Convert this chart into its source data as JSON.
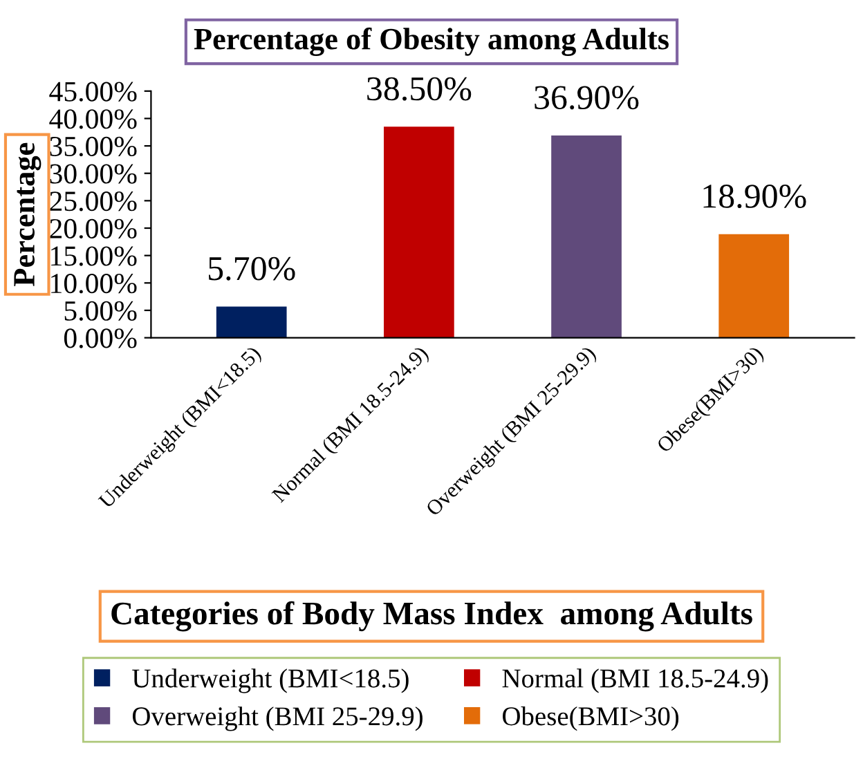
{
  "chart_data": {
    "type": "bar",
    "title": "Percentage of Obesity among Adults",
    "xlabel": "Categories of Body Mass Index  among Adults",
    "ylabel": "Percentage",
    "categories": [
      "Underweight (BMI<18.5)",
      "Normal (BMI 18.5-24.9)",
      "Overweight (BMI 25-29.9)",
      "Obese(BMI>30)"
    ],
    "series": [
      {
        "name": "Underweight (BMI<18.5)",
        "color": "#002060",
        "values": [
          5.7,
          null,
          null,
          null
        ],
        "value_labels": [
          "5.70%",
          null,
          null,
          null
        ]
      },
      {
        "name": "Normal (BMI 18.5-24.9)",
        "color": "#c00000",
        "values": [
          null,
          38.5,
          null,
          null
        ],
        "value_labels": [
          null,
          "38.50%",
          null,
          null
        ]
      },
      {
        "name": "Overweight (BMI 25-29.9)",
        "color": "#604a7b",
        "values": [
          null,
          null,
          36.9,
          null
        ],
        "value_labels": [
          null,
          null,
          "36.90%",
          null
        ]
      },
      {
        "name": "Obese(BMI>30)",
        "color": "#e36c09",
        "values": [
          null,
          null,
          null,
          18.9
        ],
        "value_labels": [
          null,
          null,
          null,
          "18.90%"
        ]
      }
    ],
    "ylim": [
      0,
      45
    ],
    "yticks": [
      {
        "value": 0,
        "label": "0.00%"
      },
      {
        "value": 5,
        "label": "5.00%"
      },
      {
        "value": 10,
        "label": "10.00%"
      },
      {
        "value": 15,
        "label": "15.00%"
      },
      {
        "value": 20,
        "label": "20.00%"
      },
      {
        "value": 25,
        "label": "25.00%"
      },
      {
        "value": 30,
        "label": "30.00%"
      },
      {
        "value": 35,
        "label": "35.00%"
      },
      {
        "value": 40,
        "label": "40.00%"
      },
      {
        "value": 45,
        "label": "45.00%"
      }
    ],
    "legend": "bottom"
  }
}
